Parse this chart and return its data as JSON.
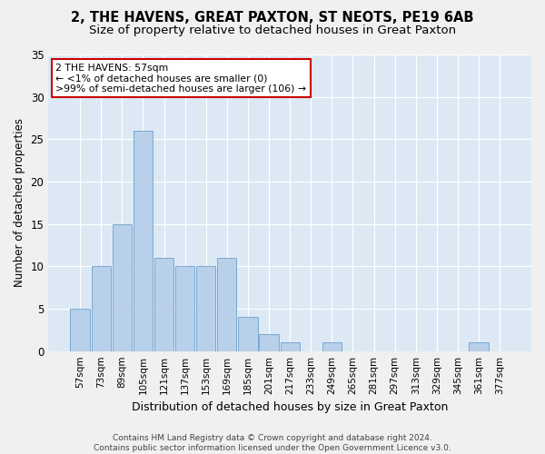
{
  "title": "2, THE HAVENS, GREAT PAXTON, ST NEOTS, PE19 6AB",
  "subtitle": "Size of property relative to detached houses in Great Paxton",
  "xlabel": "Distribution of detached houses by size in Great Paxton",
  "ylabel": "Number of detached properties",
  "footer_line1": "Contains HM Land Registry data © Crown copyright and database right 2024.",
  "footer_line2": "Contains public sector information licensed under the Open Government Licence v3.0.",
  "categories": [
    "57sqm",
    "73sqm",
    "89sqm",
    "105sqm",
    "121sqm",
    "137sqm",
    "153sqm",
    "169sqm",
    "185sqm",
    "201sqm",
    "217sqm",
    "233sqm",
    "249sqm",
    "265sqm",
    "281sqm",
    "297sqm",
    "313sqm",
    "329sqm",
    "345sqm",
    "361sqm",
    "377sqm"
  ],
  "values": [
    5,
    10,
    15,
    26,
    11,
    10,
    10,
    11,
    4,
    2,
    1,
    0,
    1,
    0,
    0,
    0,
    0,
    0,
    0,
    1,
    0
  ],
  "bar_color": "#b8d0ea",
  "bar_edge_color": "#6fa0cc",
  "ylim": [
    0,
    35
  ],
  "yticks": [
    0,
    5,
    10,
    15,
    20,
    25,
    30,
    35
  ],
  "annotation_line1": "2 THE HAVENS: 57sqm",
  "annotation_line2": "← <1% of detached houses are smaller (0)",
  "annotation_line3": ">99% of semi-detached houses are larger (106) →",
  "annotation_box_color": "#ffffff",
  "annotation_border_color": "#cc0000",
  "background_color": "#dce9f5",
  "grid_color": "#ffffff",
  "fig_bg_color": "#f0f0f0",
  "title_fontsize": 10.5,
  "subtitle_fontsize": 9.5,
  "tick_fontsize": 7.5,
  "ylabel_fontsize": 8.5,
  "xlabel_fontsize": 9,
  "annotation_fontsize": 7.8,
  "footer_fontsize": 6.5
}
